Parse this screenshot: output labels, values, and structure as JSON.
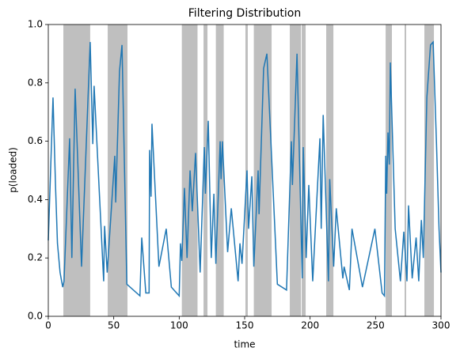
{
  "chart_data": {
    "type": "line",
    "title": "Filtering Distribution",
    "x_label": "time",
    "y_label": "p(loaded)",
    "xlim": [
      0,
      300
    ],
    "ylim": [
      0,
      1
    ],
    "xticks": [
      0,
      50,
      100,
      150,
      200,
      250,
      300
    ],
    "yticks": [
      {
        "value": 0,
        "label": "0.0"
      },
      {
        "value": 0.2,
        "label": "0.2"
      },
      {
        "value": 0.4,
        "label": "0.4"
      },
      {
        "value": 0.6,
        "label": "0.6"
      },
      {
        "value": 0.8,
        "label": "0.8"
      },
      {
        "value": 1,
        "label": "1.0"
      }
    ],
    "span_color": "#bfbfbf",
    "spans": [
      [
        11.5,
        32
      ],
      [
        45.4,
        60.5
      ],
      [
        102,
        114
      ],
      [
        118.6,
        121.6
      ],
      [
        128,
        134
      ],
      [
        150.6,
        152.4
      ],
      [
        157,
        170.6
      ],
      [
        184.5,
        193
      ],
      [
        193.6,
        196.6
      ],
      [
        212.3,
        217.8
      ],
      [
        257.7,
        262.5
      ],
      [
        272.2,
        273.4
      ],
      [
        287.3,
        294.6
      ]
    ],
    "series": [
      {
        "color": "#1f77b4",
        "x": [
          0,
          3.6,
          5.5,
          7,
          9,
          11,
          12,
          16.3,
          18,
          20.5,
          25.4,
          32,
          34,
          35,
          42.3,
          43,
          45,
          50.8,
          51.5,
          54.4,
          56.3,
          60,
          70,
          71.4,
          74.5,
          77,
          77.4,
          78.5,
          79.2,
          84.5,
          90.1,
          94,
          100,
          101,
          102,
          104,
          106,
          108.3,
          110,
          112.5,
          116,
          119.2,
          120,
          122.2,
          124.5,
          126.5,
          128,
          131.3,
          132,
          133,
          137,
          139.8,
          145,
          146.4,
          148,
          151.8,
          153,
          155.5,
          157,
          160.3,
          161,
          164.5,
          167,
          175,
          182,
          185.7,
          186.5,
          190,
          194,
          194.8,
          197,
          199,
          202,
          207.5,
          208.5,
          210,
          214,
          215,
          218,
          220,
          225,
          226,
          230,
          232,
          240,
          249.5,
          255,
          256.8,
          257.8,
          258.5,
          259.5,
          260.5,
          261.3,
          265,
          269,
          271.6,
          274,
          275.2,
          278,
          281,
          283,
          285,
          286.5,
          289.2,
          292,
          294,
          296.5,
          298.5,
          300
        ],
        "values": [
          0.26,
          0.75,
          0.45,
          0.25,
          0.15,
          0.1,
          0.12,
          0.61,
          0.2,
          0.78,
          0.17,
          0.94,
          0.59,
          0.79,
          0.12,
          0.31,
          0.15,
          0.55,
          0.39,
          0.84,
          0.93,
          0.11,
          0.07,
          0.27,
          0.08,
          0.08,
          0.57,
          0.41,
          0.66,
          0.17,
          0.3,
          0.1,
          0.07,
          0.25,
          0.19,
          0.44,
          0.2,
          0.5,
          0.36,
          0.56,
          0.15,
          0.58,
          0.42,
          0.67,
          0.2,
          0.42,
          0.18,
          0.6,
          0.47,
          0.6,
          0.22,
          0.37,
          0.12,
          0.25,
          0.18,
          0.5,
          0.3,
          0.48,
          0.17,
          0.5,
          0.35,
          0.85,
          0.9,
          0.11,
          0.09,
          0.6,
          0.45,
          0.9,
          0.13,
          0.58,
          0.2,
          0.45,
          0.12,
          0.61,
          0.3,
          0.69,
          0.12,
          0.47,
          0.17,
          0.37,
          0.13,
          0.17,
          0.09,
          0.3,
          0.1,
          0.3,
          0.08,
          0.07,
          0.55,
          0.42,
          0.63,
          0.52,
          0.87,
          0.3,
          0.12,
          0.29,
          0.12,
          0.38,
          0.13,
          0.27,
          0.12,
          0.33,
          0.2,
          0.75,
          0.93,
          0.94,
          0.6,
          0.3,
          0.15
        ]
      }
    ]
  }
}
